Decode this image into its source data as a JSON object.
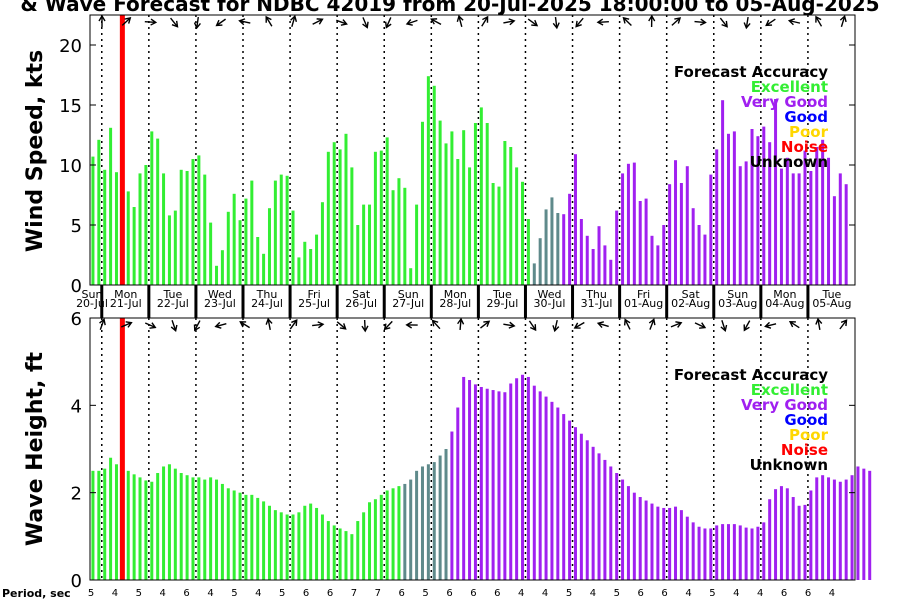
{
  "title": "& Wave Forecast for NDBC 42019 from 20-Jul-2025 18:00:00 to 05-Aug-2025",
  "colors": {
    "excellent": "#33ee33",
    "very_good": "#a020f0",
    "good": "#0000ff",
    "poor": "#ffd700",
    "noise": "#ff0000",
    "unknown": "#000000",
    "transition": "#5f8a8b"
  },
  "days": [
    {
      "dow": "Sun",
      "date": "20-Jul"
    },
    {
      "dow": "Mon",
      "date": "21-Jul"
    },
    {
      "dow": "Tue",
      "date": "22-Jul"
    },
    {
      "dow": "Wed",
      "date": "23-Jul"
    },
    {
      "dow": "Thu",
      "date": "24-Jul"
    },
    {
      "dow": "Fri",
      "date": "25-Jul"
    },
    {
      "dow": "Sat",
      "date": "26-Jul"
    },
    {
      "dow": "Sun",
      "date": "27-Jul"
    },
    {
      "dow": "Mon",
      "date": "28-Jul"
    },
    {
      "dow": "Tue",
      "date": "29-Jul"
    },
    {
      "dow": "Wed",
      "date": "30-Jul"
    },
    {
      "dow": "Thu",
      "date": "31-Jul"
    },
    {
      "dow": "Fri",
      "date": "01-Aug"
    },
    {
      "dow": "Sat",
      "date": "02-Aug"
    },
    {
      "dow": "Sun",
      "date": "03-Aug"
    },
    {
      "dow": "Mon",
      "date": "04-Aug"
    },
    {
      "dow": "Tue",
      "date": "05-Aug"
    }
  ],
  "legend": {
    "title": "Forecast Accuracy",
    "items": [
      {
        "label": "Excellent",
        "color": "#33ee33"
      },
      {
        "label": "Very Good",
        "color": "#a020f0"
      },
      {
        "label": "Good",
        "color": "#0000ff"
      },
      {
        "label": "Poor",
        "color": "#ffd700"
      },
      {
        "label": "Noise",
        "color": "#ff0000"
      },
      {
        "label": "Unknown",
        "color": "#000000"
      }
    ]
  },
  "period_label": "Period, sec",
  "period_values": [
    5,
    4,
    5,
    4,
    6,
    4,
    5,
    4,
    5,
    6,
    6,
    7,
    7,
    6,
    5,
    6,
    6,
    6,
    4,
    4,
    5,
    4,
    5,
    6,
    6,
    4,
    5,
    4,
    4,
    6,
    6,
    4
  ],
  "chart_data": [
    {
      "type": "bar",
      "title": "",
      "ylabel": "Wind Speed, kts",
      "xlabel": "",
      "ylim": [
        0,
        22.5
      ],
      "yticks": [
        0,
        5,
        10,
        15,
        20
      ],
      "grid": false,
      "legend_position": "top-right",
      "x_start": "20-Jul-2025 18:00",
      "step_hours": 3,
      "current_time_marker_index": 5,
      "values": [
        10.7,
        12.1,
        9.6,
        13.1,
        9.4,
        9.3,
        7.8,
        6.5,
        9.3,
        10,
        12.8,
        12.2,
        9.3,
        5.8,
        6.2,
        9.6,
        9.5,
        10.5,
        10.8,
        9.2,
        5.2,
        1.6,
        2.9,
        6.1,
        7.6,
        5.4,
        7.2,
        8.7,
        4,
        2.6,
        6.4,
        8.7,
        9.2,
        9.1,
        6.2,
        2.3,
        3.6,
        3,
        4.2,
        6.9,
        11.1,
        11.9,
        11.3,
        12.6,
        9.8,
        5,
        6.7,
        6.7,
        11.1,
        11.2,
        12.3,
        7.9,
        8.9,
        8.1,
        1.4,
        6.7,
        13.6,
        17.4,
        16.6,
        13.7,
        11.8,
        12.8,
        10.5,
        12.9,
        9.8,
        13.5,
        14.8,
        13.5,
        8.5,
        8.2,
        12,
        11.5,
        9.8,
        8.6,
        5.5,
        1.8,
        3.9,
        6.3,
        7.3,
        6,
        5.9,
        7.6,
        10.9,
        5.5,
        4.1,
        3,
        4.9,
        3.3,
        2.1,
        6.2,
        9.3,
        10.1,
        10.2,
        7,
        7.2,
        4.1,
        3.3,
        5,
        8.4,
        10.4,
        8.5,
        9.9,
        6.4,
        5,
        4.2,
        9.2,
        11.3,
        15.4,
        12.6,
        12.8,
        9.9,
        10.3,
        13,
        12.4,
        13.2,
        11.9,
        15.5,
        9.7,
        10.6,
        9.3,
        9.3,
        11.2,
        9.5,
        11.5,
        12.1,
        10.6,
        7.4,
        9.3,
        8.4
      ],
      "accuracy": [
        "excellent",
        "excellent",
        "excellent",
        "excellent",
        "excellent",
        "excellent",
        "excellent",
        "excellent",
        "excellent",
        "excellent",
        "excellent",
        "excellent",
        "excellent",
        "excellent",
        "excellent",
        "excellent",
        "excellent",
        "excellent",
        "excellent",
        "excellent",
        "excellent",
        "excellent",
        "excellent",
        "excellent",
        "excellent",
        "excellent",
        "excellent",
        "excellent",
        "excellent",
        "excellent",
        "excellent",
        "excellent",
        "excellent",
        "excellent",
        "excellent",
        "excellent",
        "excellent",
        "excellent",
        "excellent",
        "excellent",
        "excellent",
        "excellent",
        "excellent",
        "excellent",
        "excellent",
        "excellent",
        "excellent",
        "excellent",
        "excellent",
        "excellent",
        "excellent",
        "excellent",
        "excellent",
        "excellent",
        "excellent",
        "excellent",
        "excellent",
        "excellent",
        "excellent",
        "excellent",
        "excellent",
        "excellent",
        "excellent",
        "excellent",
        "excellent",
        "excellent",
        "excellent",
        "excellent",
        "excellent",
        "excellent",
        "excellent",
        "excellent",
        "excellent",
        "excellent",
        "excellent",
        "transition",
        "transition",
        "transition",
        "transition",
        "transition",
        "very_good",
        "very_good",
        "very_good",
        "very_good",
        "very_good",
        "very_good",
        "very_good",
        "very_good",
        "very_good",
        "very_good",
        "very_good",
        "very_good",
        "very_good",
        "very_good",
        "very_good",
        "very_good",
        "very_good",
        "very_good",
        "very_good",
        "very_good",
        "very_good",
        "very_good",
        "very_good",
        "very_good",
        "very_good",
        "very_good",
        "very_good",
        "very_good",
        "very_good",
        "very_good",
        "very_good",
        "very_good",
        "very_good",
        "very_good",
        "very_good",
        "very_good",
        "very_good",
        "very_good",
        "very_good",
        "very_good",
        "very_good",
        "very_good",
        "very_good",
        "very_good",
        "very_good",
        "very_good",
        "very_good",
        "very_good",
        "very_good"
      ]
    },
    {
      "type": "bar",
      "title": "",
      "ylabel": "Wave Height, ft",
      "xlabel": "",
      "ylim": [
        0,
        6
      ],
      "yticks": [
        0,
        2,
        4,
        6
      ],
      "grid": false,
      "legend_position": "top-right",
      "x_start": "20-Jul-2025 18:00",
      "step_hours": 3,
      "current_time_marker_index": 5,
      "values": [
        2.5,
        2.5,
        2.55,
        2.8,
        2.65,
        2.55,
        2.5,
        2.42,
        2.35,
        2.28,
        2.25,
        2.45,
        2.6,
        2.65,
        2.55,
        2.45,
        2.4,
        2.35,
        2.35,
        2.3,
        2.35,
        2.3,
        2.2,
        2.1,
        2.05,
        2,
        1.95,
        1.95,
        1.88,
        1.8,
        1.7,
        1.6,
        1.55,
        1.5,
        1.5,
        1.55,
        1.7,
        1.75,
        1.65,
        1.5,
        1.35,
        1.25,
        1.18,
        1.12,
        1.05,
        1.35,
        1.55,
        1.78,
        1.85,
        1.95,
        2.05,
        2.1,
        2.15,
        2.2,
        2.3,
        2.5,
        2.6,
        2.65,
        2.7,
        2.85,
        3,
        3.4,
        3.95,
        4.65,
        4.58,
        4.48,
        4.42,
        4.38,
        4.35,
        4.32,
        4.3,
        4.5,
        4.62,
        4.7,
        4.65,
        4.45,
        4.32,
        4.2,
        4.08,
        3.95,
        3.8,
        3.65,
        3.5,
        3.35,
        3.2,
        3.05,
        2.9,
        2.75,
        2.6,
        2.45,
        2.3,
        2.15,
        2,
        1.9,
        1.82,
        1.75,
        1.68,
        1.65,
        1.65,
        1.68,
        1.6,
        1.45,
        1.32,
        1.22,
        1.18,
        1.18,
        1.25,
        1.28,
        1.28,
        1.28,
        1.25,
        1.2,
        1.18,
        1.22,
        1.32,
        1.85,
        2.08,
        2.15,
        2.1,
        1.9,
        1.7,
        1.72,
        2.05,
        2.35,
        2.4,
        2.35,
        2.3,
        2.25,
        2.3,
        2.4,
        2.6,
        2.55,
        2.5
      ],
      "accuracy": [
        "excellent",
        "excellent",
        "excellent",
        "excellent",
        "excellent",
        "excellent",
        "excellent",
        "excellent",
        "excellent",
        "excellent",
        "excellent",
        "excellent",
        "excellent",
        "excellent",
        "excellent",
        "excellent",
        "excellent",
        "excellent",
        "excellent",
        "excellent",
        "excellent",
        "excellent",
        "excellent",
        "excellent",
        "excellent",
        "excellent",
        "excellent",
        "excellent",
        "excellent",
        "excellent",
        "excellent",
        "excellent",
        "excellent",
        "excellent",
        "excellent",
        "excellent",
        "excellent",
        "excellent",
        "excellent",
        "excellent",
        "excellent",
        "excellent",
        "excellent",
        "excellent",
        "excellent",
        "excellent",
        "excellent",
        "excellent",
        "excellent",
        "excellent",
        "excellent",
        "excellent",
        "excellent",
        "transition",
        "transition",
        "transition",
        "transition",
        "transition",
        "transition",
        "transition",
        "transition",
        "very_good",
        "very_good",
        "very_good",
        "very_good",
        "very_good",
        "very_good",
        "very_good",
        "very_good",
        "very_good",
        "very_good",
        "very_good",
        "very_good",
        "very_good",
        "very_good",
        "very_good",
        "very_good",
        "very_good",
        "very_good",
        "very_good",
        "very_good",
        "very_good",
        "very_good",
        "very_good",
        "very_good",
        "very_good",
        "very_good",
        "very_good",
        "very_good",
        "very_good",
        "very_good",
        "very_good",
        "very_good",
        "very_good",
        "very_good",
        "very_good",
        "very_good",
        "very_good",
        "very_good",
        "very_good",
        "very_good",
        "very_good",
        "very_good",
        "very_good",
        "very_good",
        "very_good",
        "very_good",
        "very_good",
        "very_good",
        "very_good",
        "very_good",
        "very_good",
        "very_good",
        "very_good",
        "very_good",
        "very_good",
        "very_good",
        "very_good",
        "very_good",
        "very_good",
        "very_good",
        "very_good",
        "very_good",
        "very_good",
        "very_good",
        "very_good",
        "very_good",
        "very_good",
        "very_good",
        "very_good",
        "very_good",
        "very_good",
        "very_good"
      ]
    }
  ]
}
